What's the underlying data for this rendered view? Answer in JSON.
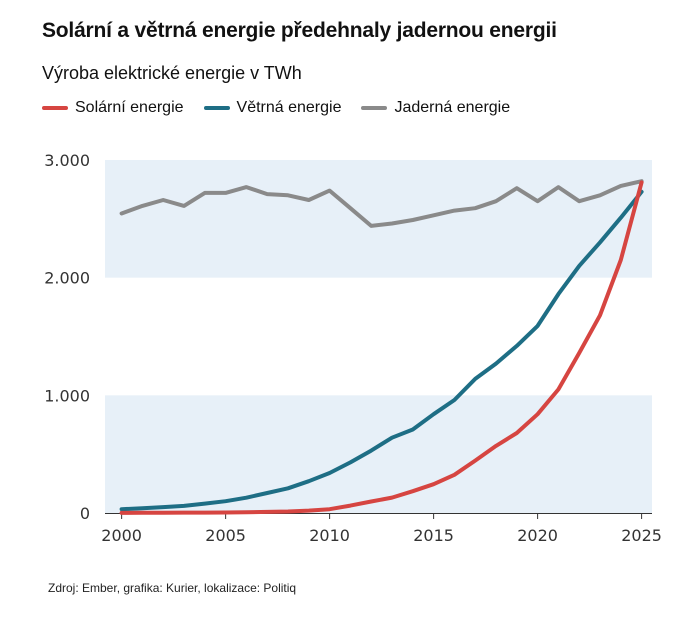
{
  "title": "Solární a větrná energie předehnaly jadernou energii",
  "subtitle": "Výroba elektrické energie v TWh",
  "source": "Zdroj: Ember, grafika: Kurier, lokalizace: Politiq",
  "chart_data": {
    "type": "line",
    "x": [
      2000,
      2001,
      2002,
      2003,
      2004,
      2005,
      2006,
      2007,
      2008,
      2009,
      2010,
      2011,
      2012,
      2013,
      2014,
      2015,
      2016,
      2017,
      2018,
      2019,
      2020,
      2021,
      2022,
      2023,
      2024,
      2025
    ],
    "series": [
      {
        "name": "Solární energie",
        "color": "#d64541",
        "values": [
          1,
          2,
          2,
          3,
          3,
          4,
          6,
          9,
          13,
          20,
          32,
          63,
          98,
          131,
          185,
          245,
          325,
          445,
          570,
          680,
          840,
          1050,
          1360,
          1680,
          2150,
          2810
        ]
      },
      {
        "name": "Větrná energie",
        "color": "#1e6e85",
        "values": [
          32,
          40,
          50,
          60,
          80,
          100,
          130,
          170,
          210,
          270,
          340,
          430,
          530,
          640,
          710,
          840,
          960,
          1140,
          1270,
          1420,
          1590,
          1860,
          2100,
          2300,
          2510,
          2730
        ]
      },
      {
        "name": "Jaderná energie",
        "color": "#8a8a8a",
        "values": [
          2545,
          2610,
          2660,
          2610,
          2720,
          2720,
          2770,
          2710,
          2700,
          2660,
          2740,
          2590,
          2440,
          2460,
          2490,
          2530,
          2570,
          2590,
          2650,
          2760,
          2650,
          2770,
          2650,
          2700,
          2780,
          2820
        ]
      }
    ],
    "xticks": [
      2000,
      2005,
      2010,
      2015,
      2020,
      2025
    ],
    "yticks": [
      {
        "value": 0,
        "label": "0"
      },
      {
        "value": 1000,
        "label": "1.000"
      },
      {
        "value": 2000,
        "label": "2.000"
      },
      {
        "value": 3000,
        "label": "3.000"
      }
    ],
    "xlim": [
      1999.2,
      2025.5
    ],
    "ylim": [
      0,
      3000
    ],
    "band_color": "#e7f0f8",
    "grid": false,
    "legend_position": "top-left"
  }
}
